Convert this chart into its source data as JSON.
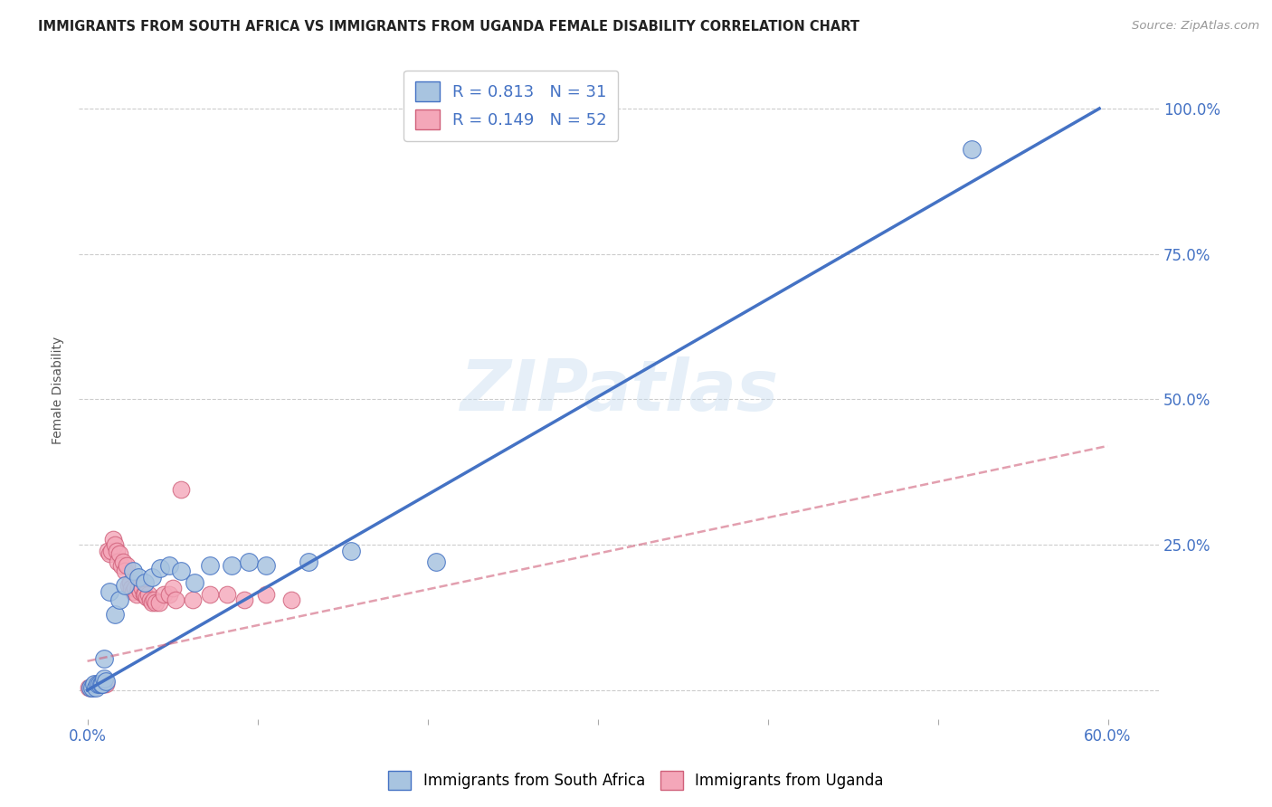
{
  "title": "IMMIGRANTS FROM SOUTH AFRICA VS IMMIGRANTS FROM UGANDA FEMALE DISABILITY CORRELATION CHART",
  "source": "Source: ZipAtlas.com",
  "ylabel": "Female Disability",
  "xlim": [
    -0.005,
    0.63
  ],
  "ylim": [
    -0.05,
    1.08
  ],
  "r_south_africa": 0.813,
  "n_south_africa": 31,
  "r_uganda": 0.149,
  "n_uganda": 52,
  "color_south_africa": "#a8c4e0",
  "color_south_africa_line": "#4472c4",
  "color_uganda": "#f4a7b9",
  "color_uganda_line": "#d0607a",
  "watermark": "ZIPatlas",
  "sa_line": [
    [
      0.0,
      0.0
    ],
    [
      0.595,
      1.0
    ]
  ],
  "ug_line": [
    [
      0.0,
      0.05
    ],
    [
      0.6,
      0.42
    ]
  ],
  "south_africa_points": [
    [
      0.002,
      0.005
    ],
    [
      0.003,
      0.005
    ],
    [
      0.004,
      0.01
    ],
    [
      0.005,
      0.005
    ],
    [
      0.006,
      0.01
    ],
    [
      0.007,
      0.01
    ],
    [
      0.008,
      0.01
    ],
    [
      0.009,
      0.01
    ],
    [
      0.01,
      0.02
    ],
    [
      0.011,
      0.015
    ],
    [
      0.013,
      0.17
    ],
    [
      0.016,
      0.13
    ],
    [
      0.019,
      0.155
    ],
    [
      0.022,
      0.18
    ],
    [
      0.027,
      0.205
    ],
    [
      0.03,
      0.195
    ],
    [
      0.034,
      0.185
    ],
    [
      0.038,
      0.195
    ],
    [
      0.043,
      0.21
    ],
    [
      0.048,
      0.215
    ],
    [
      0.055,
      0.205
    ],
    [
      0.063,
      0.185
    ],
    [
      0.072,
      0.215
    ],
    [
      0.085,
      0.215
    ],
    [
      0.095,
      0.22
    ],
    [
      0.105,
      0.215
    ],
    [
      0.13,
      0.22
    ],
    [
      0.155,
      0.24
    ],
    [
      0.205,
      0.22
    ],
    [
      0.52,
      0.93
    ],
    [
      0.01,
      0.055
    ]
  ],
  "uganda_points": [
    [
      0.001,
      0.005
    ],
    [
      0.002,
      0.005
    ],
    [
      0.003,
      0.005
    ],
    [
      0.004,
      0.005
    ],
    [
      0.005,
      0.01
    ],
    [
      0.006,
      0.01
    ],
    [
      0.007,
      0.01
    ],
    [
      0.008,
      0.01
    ],
    [
      0.009,
      0.01
    ],
    [
      0.01,
      0.01
    ],
    [
      0.011,
      0.01
    ],
    [
      0.012,
      0.24
    ],
    [
      0.013,
      0.235
    ],
    [
      0.014,
      0.24
    ],
    [
      0.015,
      0.26
    ],
    [
      0.016,
      0.25
    ],
    [
      0.017,
      0.24
    ],
    [
      0.018,
      0.22
    ],
    [
      0.019,
      0.235
    ],
    [
      0.02,
      0.215
    ],
    [
      0.021,
      0.22
    ],
    [
      0.022,
      0.205
    ],
    [
      0.023,
      0.215
    ],
    [
      0.024,
      0.18
    ],
    [
      0.025,
      0.185
    ],
    [
      0.026,
      0.175
    ],
    [
      0.027,
      0.17
    ],
    [
      0.028,
      0.175
    ],
    [
      0.029,
      0.165
    ],
    [
      0.03,
      0.175
    ],
    [
      0.031,
      0.17
    ],
    [
      0.032,
      0.175
    ],
    [
      0.033,
      0.165
    ],
    [
      0.034,
      0.165
    ],
    [
      0.035,
      0.16
    ],
    [
      0.036,
      0.165
    ],
    [
      0.037,
      0.155
    ],
    [
      0.038,
      0.15
    ],
    [
      0.039,
      0.155
    ],
    [
      0.04,
      0.15
    ],
    [
      0.042,
      0.15
    ],
    [
      0.045,
      0.165
    ],
    [
      0.048,
      0.165
    ],
    [
      0.05,
      0.175
    ],
    [
      0.052,
      0.155
    ],
    [
      0.055,
      0.345
    ],
    [
      0.062,
      0.155
    ],
    [
      0.072,
      0.165
    ],
    [
      0.082,
      0.165
    ],
    [
      0.092,
      0.155
    ],
    [
      0.105,
      0.165
    ],
    [
      0.12,
      0.155
    ]
  ]
}
